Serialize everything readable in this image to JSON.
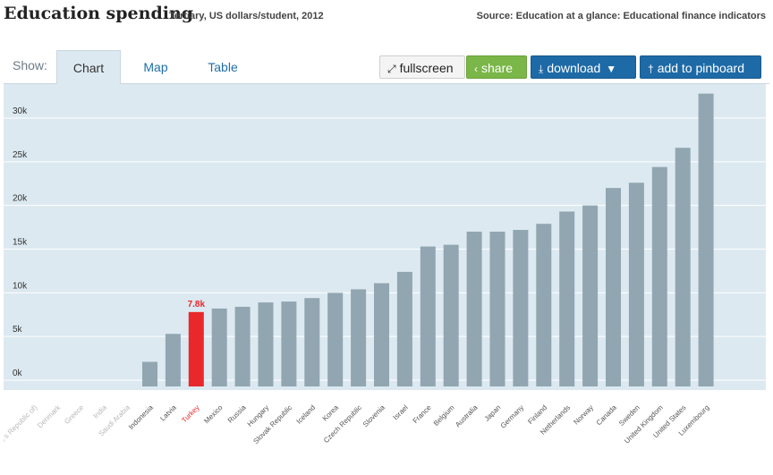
{
  "header": {
    "title": "Education spending",
    "subtitle": "Tertiary, US dollars/student, 2012",
    "source": "Source: Education at a glance: Educational finance indicators"
  },
  "tabs": {
    "show_label": "Show:",
    "items": [
      {
        "label": "Chart",
        "active": true
      },
      {
        "label": "Map",
        "active": false
      },
      {
        "label": "Table",
        "active": false
      }
    ]
  },
  "toolbar": {
    "fullscreen_label": "fullscreen",
    "share_label": "share",
    "download_label": "download",
    "pin_label": "add to pinboard",
    "fullscreen_icon": "expand-icon",
    "share_icon": "share-icon",
    "download_icon": "download-icon",
    "pin_icon": "pin-icon"
  },
  "colors": {
    "plot_bg": "#dce9f1",
    "bar": "#91a6b1",
    "highlight": "#e8282a",
    "grid": "#ffffff",
    "faded_label": "#b8b8b8",
    "label": "#555555"
  },
  "chart_data": {
    "type": "bar",
    "title": "Education spending",
    "subtitle": "Tertiary, US dollars/student, 2012",
    "ylim": [
      -1000,
      34000
    ],
    "yticks": [
      0,
      5000,
      10000,
      15000,
      20000,
      25000,
      30000
    ],
    "ytick_labels": [
      "0k",
      "5k",
      "10k",
      "15k",
      "20k",
      "25k",
      "30k"
    ],
    "categories": [
      "China (People's Republic of)",
      "Denmark",
      "Greece",
      "India",
      "Saudi Arabia",
      "Indonesia",
      "Latvia",
      "Turkey",
      "Mexico",
      "Russia",
      "Hungary",
      "Slovak Republic",
      "Iceland",
      "Korea",
      "Czech Republic",
      "Slovenia",
      "Israel",
      "France",
      "Belgium",
      "Australia",
      "Japan",
      "Germany",
      "Finland",
      "Netherlands",
      "Norway",
      "Canada",
      "Sweden",
      "United Kingdom",
      "United States",
      "Luxembourg"
    ],
    "visible_categories": [
      "a (People's Republic of)",
      "Denmark",
      "Greece",
      "India",
      "Saudi Arabia",
      "Indonesia",
      "Latvia",
      "Turkey",
      "Mexico",
      "Russia",
      "Hungary",
      "Slovak Republic",
      "Iceland",
      "Korea",
      "Czech Republic",
      "Slovenia",
      "Israel",
      "France",
      "Belgium",
      "Australia",
      "Japan",
      "Germany",
      "Finland",
      "Netherlands",
      "Norway",
      "Canada",
      "Sweden",
      "United Kingdom",
      "United States",
      "Luxembourg"
    ],
    "values": [
      null,
      null,
      null,
      null,
      null,
      2100,
      5300,
      7800,
      8200,
      8400,
      8900,
      9000,
      9400,
      10000,
      10400,
      11100,
      12400,
      15300,
      15500,
      17000,
      17000,
      17200,
      17900,
      19300,
      20000,
      22000,
      22600,
      24400,
      26600,
      32800
    ],
    "highlight": "Turkey",
    "highlight_label": "7.8k",
    "no_data": [
      "China (People's Republic of)",
      "Denmark",
      "Greece",
      "India",
      "Saudi Arabia"
    ],
    "grid": true,
    "legend": "none"
  }
}
